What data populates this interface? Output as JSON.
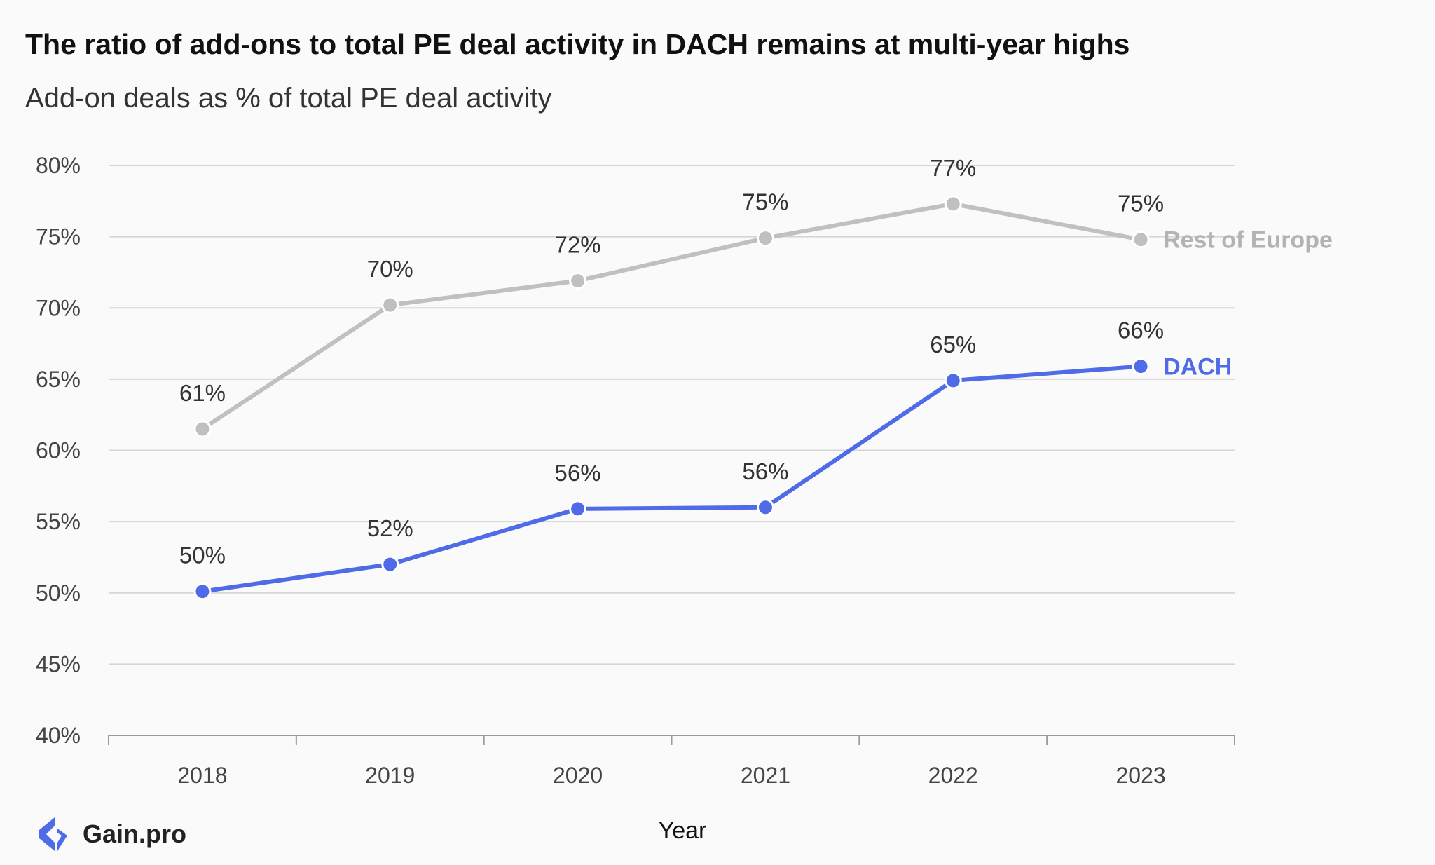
{
  "title": "The ratio of add-ons to total PE deal activity in DACH remains at multi-year highs",
  "subtitle": "Add-on deals as % of total PE deal activity",
  "brand": {
    "name": "Gain.pro",
    "color": "#4f6be8"
  },
  "chart_data": {
    "type": "line",
    "title": "The ratio of add-ons to total PE deal activity in DACH remains at multi-year highs",
    "subtitle": "Add-on deals as % of total PE deal activity",
    "xlabel": "Year",
    "ylabel": "",
    "x": [
      "2018",
      "2019",
      "2020",
      "2021",
      "2022",
      "2023"
    ],
    "ylim": [
      40,
      80
    ],
    "yticks": [
      40,
      45,
      50,
      55,
      60,
      65,
      70,
      75,
      80
    ],
    "ytick_labels": [
      "40%",
      "45%",
      "50%",
      "55%",
      "60%",
      "65%",
      "70%",
      "75%",
      "80%"
    ],
    "grid": true,
    "legend": "direct labels at line ends",
    "series": [
      {
        "name": "Rest of Europe",
        "color": "#c0c0c0",
        "label_color": "#b3b3b3",
        "values": [
          61.5,
          70.2,
          71.9,
          74.9,
          77.3,
          74.8
        ],
        "labels": [
          "61%",
          "70%",
          "72%",
          "75%",
          "77%",
          "75%"
        ]
      },
      {
        "name": "DACH",
        "color": "#4f6be8",
        "label_color": "#4f6be8",
        "values": [
          50.1,
          52.0,
          55.9,
          56.0,
          64.9,
          65.9
        ],
        "labels": [
          "50%",
          "52%",
          "56%",
          "56%",
          "65%",
          "66%"
        ]
      }
    ]
  }
}
